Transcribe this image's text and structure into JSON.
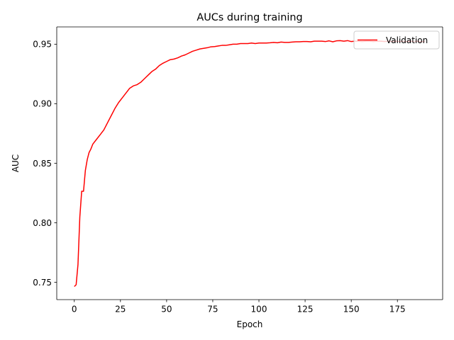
{
  "chart_data": {
    "type": "line",
    "title": "AUCs during training",
    "xlabel": "Epoch",
    "ylabel": "AUC",
    "xlim": [
      -9.5,
      199.5
    ],
    "ylim": [
      0.7355,
      0.9645
    ],
    "xticks": [
      0,
      25,
      50,
      75,
      100,
      125,
      150,
      175
    ],
    "xtick_labels": [
      "0",
      "25",
      "50",
      "75",
      "100",
      "125",
      "150",
      "175"
    ],
    "yticks": [
      0.75,
      0.8,
      0.85,
      0.9,
      0.95
    ],
    "ytick_labels": [
      "0.75",
      "0.80",
      "0.85",
      "0.90",
      "0.95"
    ],
    "grid": false,
    "legend_position": "top-right",
    "series": [
      {
        "name": "Validation",
        "color": "#ff0000",
        "x": [
          0,
          1,
          2,
          3,
          4,
          5,
          6,
          7,
          8,
          9,
          10,
          12,
          14,
          16,
          18,
          20,
          22,
          24,
          26,
          28,
          30,
          32,
          34,
          36,
          38,
          40,
          42,
          44,
          46,
          48,
          50,
          52,
          54,
          56,
          58,
          60,
          62,
          64,
          66,
          68,
          70,
          72,
          74,
          76,
          78,
          80,
          82,
          84,
          86,
          88,
          90,
          92,
          94,
          96,
          98,
          100,
          102,
          104,
          106,
          108,
          110,
          112,
          114,
          116,
          118,
          120,
          122,
          124,
          126,
          128,
          130,
          132,
          134,
          136,
          138,
          140,
          142,
          144,
          146,
          148,
          150,
          152,
          154,
          156,
          158,
          160,
          162,
          164,
          166,
          168,
          170,
          172,
          174,
          176,
          178,
          180,
          182,
          184,
          186,
          188,
          190
        ],
        "y": [
          0.7465,
          0.748,
          0.765,
          0.805,
          0.8265,
          0.8265,
          0.844,
          0.853,
          0.859,
          0.862,
          0.866,
          0.87,
          0.874,
          0.878,
          0.884,
          0.89,
          0.896,
          0.901,
          0.905,
          0.909,
          0.913,
          0.915,
          0.916,
          0.918,
          0.921,
          0.924,
          0.927,
          0.929,
          0.932,
          0.934,
          0.9355,
          0.937,
          0.9375,
          0.9385,
          0.94,
          0.941,
          0.9425,
          0.944,
          0.945,
          0.946,
          0.9465,
          0.947,
          0.9478,
          0.948,
          0.9485,
          0.949,
          0.949,
          0.9495,
          0.95,
          0.95,
          0.9505,
          0.9505,
          0.9505,
          0.951,
          0.9505,
          0.951,
          0.951,
          0.951,
          0.9512,
          0.9515,
          0.9512,
          0.9518,
          0.9515,
          0.9515,
          0.9518,
          0.952,
          0.952,
          0.9522,
          0.9522,
          0.952,
          0.9525,
          0.9525,
          0.9525,
          0.9522,
          0.9528,
          0.952,
          0.9528,
          0.953,
          0.9525,
          0.953,
          0.9522,
          0.9525,
          0.9525,
          0.9522,
          0.9525,
          0.9525,
          0.9522,
          0.9525,
          0.9525,
          0.9522,
          0.9525,
          0.9522,
          0.9525,
          0.9522,
          0.9525,
          0.9522,
          0.9525,
          0.9522,
          0.9525,
          0.952,
          0.9525
        ]
      }
    ]
  }
}
